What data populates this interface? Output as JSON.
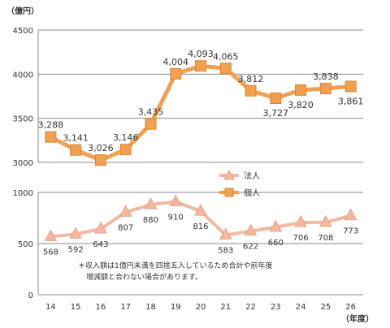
{
  "chart_data": {
    "type": "line",
    "unit_label": "（億円）",
    "xlabel": "（年度）",
    "categories": [
      "14",
      "15",
      "16",
      "17",
      "18",
      "19",
      "20",
      "21",
      "22",
      "23",
      "24",
      "25",
      "26"
    ],
    "series": [
      {
        "name": "個人",
        "color": "#F0A050",
        "marker": "square",
        "panel": "upper",
        "values": [
          3288,
          3141,
          3026,
          3146,
          3435,
          4004,
          4093,
          4065,
          3812,
          3727,
          3820,
          3838,
          3861
        ],
        "labels": [
          "3,288",
          "3,141",
          "3,026",
          "3,146",
          "3,435",
          "4,004",
          "4,093",
          "4,065",
          "3,812",
          "3,727",
          "3,820",
          "3,838",
          "3,861"
        ]
      },
      {
        "name": "法人",
        "color": "#F2B8A0",
        "marker": "triangle",
        "panel": "lower",
        "values": [
          568,
          592,
          643,
          807,
          880,
          910,
          816,
          583,
          622,
          660,
          706,
          708,
          773
        ],
        "labels": [
          "568",
          "592",
          "643",
          "807",
          "880",
          "910",
          "816",
          "583",
          "622",
          "660",
          "706",
          "708",
          "773"
        ]
      }
    ],
    "upper_axis": {
      "ylim": [
        3000,
        4500
      ],
      "ticks": [
        "3000",
        "3500",
        "4000",
        "4500"
      ]
    },
    "lower_axis": {
      "ylim": [
        0,
        1000
      ],
      "ticks": [
        "0",
        "500",
        "1000"
      ]
    },
    "grid": true,
    "legend_placement": "middle-right",
    "note_lines": [
      "＊収入額は1億円未満を四捨五入しているため合計や前年度",
      "増減額と合わない場合があります。"
    ]
  }
}
